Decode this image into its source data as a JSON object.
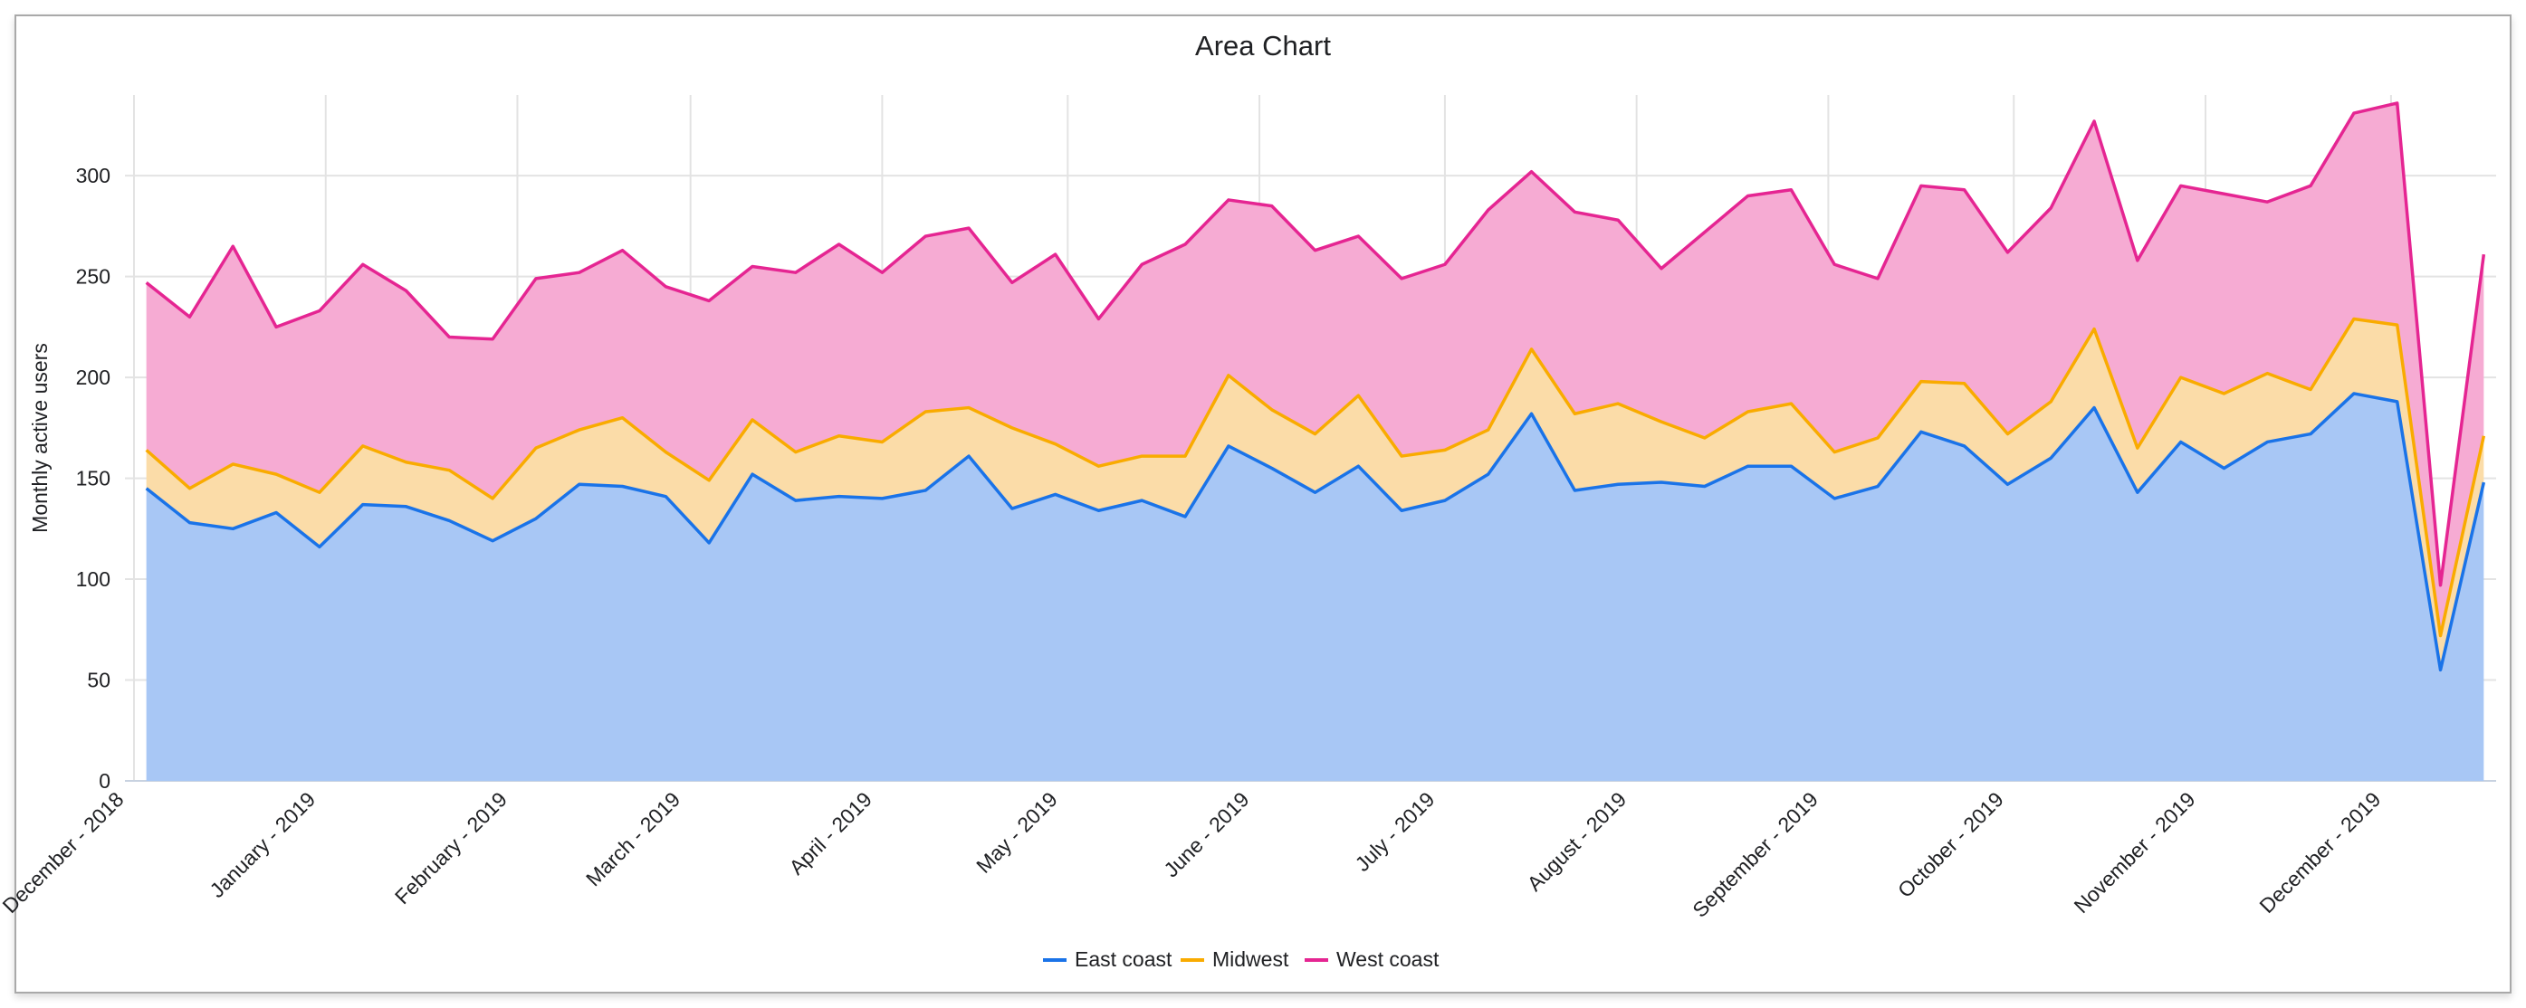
{
  "chart_data": {
    "type": "area",
    "stacked": true,
    "title": "Area Chart",
    "xlabel": "",
    "ylabel": "Monthly active users",
    "ylim": [
      0,
      340
    ],
    "y_ticks": [
      0,
      50,
      100,
      150,
      200,
      250,
      300
    ],
    "x_range": [
      "2018-12-01",
      "2019-12-18"
    ],
    "x_tick_labels": [
      "December - 2018",
      "January - 2019",
      "February - 2019",
      "March - 2019",
      "April - 2019",
      "May - 2019",
      "June - 2019",
      "July - 2019",
      "August - 2019",
      "September - 2019",
      "October - 2019",
      "November - 2019",
      "December - 2019"
    ],
    "grid": true,
    "legend": "bottom",
    "x": [
      "2018-12-03",
      "2018-12-10",
      "2018-12-17",
      "2018-12-24",
      "2018-12-31",
      "2019-01-07",
      "2019-01-14",
      "2019-01-21",
      "2019-01-28",
      "2019-02-04",
      "2019-02-11",
      "2019-02-18",
      "2019-02-25",
      "2019-03-04",
      "2019-03-11",
      "2019-03-18",
      "2019-03-25",
      "2019-04-01",
      "2019-04-08",
      "2019-04-15",
      "2019-04-22",
      "2019-04-29",
      "2019-05-06",
      "2019-05-13",
      "2019-05-20",
      "2019-05-27",
      "2019-06-03",
      "2019-06-10",
      "2019-06-17",
      "2019-06-24",
      "2019-07-01",
      "2019-07-08",
      "2019-07-15",
      "2019-07-22",
      "2019-07-29",
      "2019-08-05",
      "2019-08-12",
      "2019-08-19",
      "2019-08-26",
      "2019-09-02",
      "2019-09-09",
      "2019-09-16",
      "2019-09-23",
      "2019-09-30",
      "2019-10-07",
      "2019-10-14",
      "2019-10-21",
      "2019-10-28",
      "2019-11-04",
      "2019-11-11",
      "2019-11-18",
      "2019-11-25",
      "2019-12-02",
      "2019-12-09",
      "2019-12-16"
    ],
    "series": [
      {
        "name": "East coast",
        "color": "#1a73e8",
        "fill": "#a8c7f5",
        "values": [
          145,
          128,
          125,
          133,
          116,
          137,
          136,
          129,
          119,
          130,
          147,
          146,
          141,
          118,
          152,
          139,
          141,
          140,
          144,
          161,
          135,
          142,
          134,
          139,
          131,
          166,
          155,
          143,
          156,
          134,
          139,
          152,
          182,
          144,
          147,
          148,
          146,
          156,
          156,
          140,
          146,
          173,
          166,
          147,
          160,
          185,
          143,
          168,
          155,
          168,
          172,
          192,
          188,
          55,
          148
        ]
      },
      {
        "name": "Midwest",
        "color": "#f9ab00",
        "fill": "#fbdca8",
        "values": [
          19,
          17,
          32,
          19,
          27,
          29,
          22,
          25,
          21,
          35,
          27,
          34,
          22,
          31,
          27,
          24,
          30,
          28,
          39,
          24,
          40,
          25,
          22,
          22,
          30,
          35,
          29,
          29,
          35,
          27,
          25,
          22,
          32,
          38,
          40,
          30,
          24,
          27,
          31,
          23,
          24,
          25,
          31,
          25,
          28,
          39,
          22,
          32,
          37,
          34,
          22,
          37,
          38,
          17,
          23
        ]
      },
      {
        "name": "West coast",
        "color": "#e52592",
        "fill": "#f6abd3",
        "values": [
          83,
          85,
          108,
          73,
          90,
          90,
          85,
          66,
          79,
          84,
          78,
          83,
          82,
          89,
          76,
          89,
          95,
          84,
          87,
          89,
          72,
          94,
          73,
          95,
          105,
          87,
          101,
          91,
          79,
          88,
          92,
          109,
          88,
          100,
          91,
          76,
          102,
          107,
          106,
          93,
          79,
          97,
          96,
          90,
          96,
          103,
          93,
          95,
          99,
          85,
          101,
          102,
          110,
          25,
          90
        ]
      }
    ]
  }
}
